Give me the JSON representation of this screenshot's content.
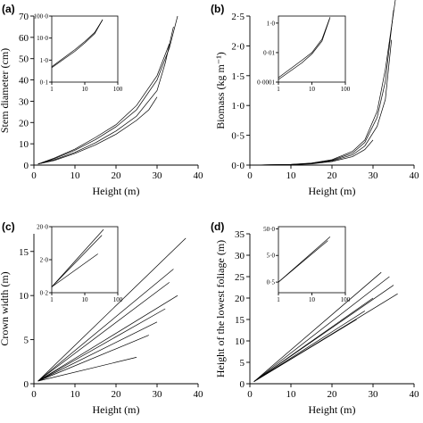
{
  "chart_data": [
    {
      "panel": "a",
      "panel_label": "(a)",
      "type": "line",
      "xlabel": "Height (m)",
      "ylabel": "Stem diameter (cm)",
      "xlim": [
        0,
        40
      ],
      "ylim": [
        0,
        70
      ],
      "xticks": [
        "0",
        "10",
        "20",
        "30",
        "40"
      ],
      "yticks": [
        "0",
        "10",
        "20",
        "30",
        "40",
        "50",
        "60",
        "70"
      ],
      "series": [
        {
          "x": [
            1,
            5,
            10,
            15,
            20,
            25,
            30,
            33,
            35
          ],
          "y": [
            0.5,
            3,
            7,
            12,
            18,
            26,
            40,
            55,
            70
          ]
        },
        {
          "x": [
            1,
            5,
            10,
            15,
            20,
            25,
            30,
            32,
            34
          ],
          "y": [
            0.5,
            2.5,
            6,
            10.5,
            16,
            23,
            35,
            48,
            65
          ]
        },
        {
          "x": [
            1,
            5,
            10,
            15,
            20,
            25,
            28,
            30
          ],
          "y": [
            0.5,
            2.2,
            5.5,
            9.5,
            14.5,
            21,
            26,
            32
          ]
        },
        {
          "x": [
            1,
            5,
            10,
            15,
            20,
            25,
            30,
            33
          ],
          "y": [
            0.5,
            3.3,
            7.5,
            13,
            19,
            28,
            42,
            57
          ]
        }
      ],
      "inset": {
        "scale": "log",
        "xticks": [
          "1",
          "10",
          "100"
        ],
        "yticks": [
          "0·1",
          "1·0",
          "10·0",
          "100·0"
        ],
        "xlim": [
          1,
          100
        ],
        "ylim": [
          0.1,
          100
        ],
        "series": [
          {
            "x": [
              1,
              5,
              10,
              20,
              35
            ],
            "y": [
              0.5,
              3,
              7,
              18,
              70
            ]
          },
          {
            "x": [
              1,
              5,
              10,
              20,
              34
            ],
            "y": [
              0.45,
              2.5,
              6,
              16,
              65
            ]
          }
        ]
      }
    },
    {
      "panel": "b",
      "panel_label": "(b)",
      "type": "line",
      "xlabel": "Height (m)",
      "ylabel": "Biomass (kg m⁻¹)",
      "xlim": [
        0,
        40
      ],
      "ylim": [
        0,
        2.5
      ],
      "xticks": [
        "0",
        "10",
        "20",
        "30",
        "40"
      ],
      "yticks": [
        "0·0",
        "0·5",
        "1·0",
        "1·5",
        "2·0",
        "2·5"
      ],
      "series": [
        {
          "x": [
            1,
            10,
            15,
            20,
            25,
            28,
            31,
            33,
            35
          ],
          "y": [
            0,
            0.01,
            0.03,
            0.08,
            0.2,
            0.38,
            0.8,
            1.4,
            2.6
          ]
        },
        {
          "x": [
            1,
            10,
            15,
            20,
            25,
            28,
            31,
            33,
            34.5
          ],
          "y": [
            0,
            0.01,
            0.025,
            0.07,
            0.17,
            0.32,
            0.65,
            1.1,
            2.1
          ]
        },
        {
          "x": [
            1,
            10,
            15,
            20,
            25,
            28,
            30
          ],
          "y": [
            0,
            0.008,
            0.02,
            0.06,
            0.14,
            0.26,
            0.42
          ]
        },
        {
          "x": [
            1,
            10,
            15,
            20,
            25,
            28,
            31,
            33,
            35.5
          ],
          "y": [
            0,
            0.012,
            0.035,
            0.09,
            0.23,
            0.42,
            0.9,
            1.6,
            2.8
          ]
        }
      ],
      "inset": {
        "scale": "log",
        "xticks": [
          "1",
          "10",
          "100"
        ],
        "yticks": [
          "0·0001",
          "0·01",
          "1·0"
        ],
        "xlim": [
          1,
          100
        ],
        "ylim": [
          0.0001,
          3
        ],
        "series": [
          {
            "x": [
              1,
              5,
              10,
              20,
              35
            ],
            "y": [
              0.0002,
              0.003,
              0.01,
              0.08,
              2.5
            ]
          },
          {
            "x": [
              1,
              5,
              10,
              20,
              34
            ],
            "y": [
              0.00015,
              0.002,
              0.008,
              0.06,
              2.0
            ]
          }
        ]
      }
    },
    {
      "panel": "c",
      "panel_label": "(c)",
      "type": "line",
      "xlabel": "Height (m)",
      "ylabel": "Crown width (m)",
      "xlim": [
        0,
        40
      ],
      "ylim": [
        0,
        17
      ],
      "xticks": [
        "0",
        "10",
        "20",
        "30",
        "40"
      ],
      "yticks": [
        "0",
        "5",
        "10",
        "15"
      ],
      "series": [
        {
          "x": [
            1,
            37
          ],
          "y": [
            0.3,
            16.5
          ]
        },
        {
          "x": [
            1,
            34
          ],
          "y": [
            0.3,
            13
          ]
        },
        {
          "x": [
            1,
            33
          ],
          "y": [
            0.3,
            11.5
          ]
        },
        {
          "x": [
            1,
            35
          ],
          "y": [
            0.3,
            10
          ]
        },
        {
          "x": [
            1,
            32
          ],
          "y": [
            0.3,
            8.5
          ]
        },
        {
          "x": [
            1,
            30
          ],
          "y": [
            0.3,
            7
          ]
        },
        {
          "x": [
            1,
            28
          ],
          "y": [
            0.3,
            5.5
          ]
        },
        {
          "x": [
            1,
            25
          ],
          "y": [
            0.3,
            3
          ]
        }
      ],
      "inset": {
        "scale": "log",
        "xticks": [
          "1",
          "10",
          "100"
        ],
        "yticks": [
          "0·2",
          "2·0",
          "20·0"
        ],
        "xlim": [
          1,
          100
        ],
        "ylim": [
          0.2,
          20
        ],
        "series": [
          {
            "x": [
              1,
              37
            ],
            "y": [
              0.3,
              16.5
            ]
          },
          {
            "x": [
              1,
              33
            ],
            "y": [
              0.3,
              11
            ]
          },
          {
            "x": [
              1,
              25
            ],
            "y": [
              0.3,
              3
            ]
          }
        ]
      }
    },
    {
      "panel": "d",
      "panel_label": "(d)",
      "type": "line",
      "xlabel": "Height (m)",
      "ylabel": "Height of the lowest foliage (m)",
      "xlim": [
        0,
        40
      ],
      "ylim": [
        0,
        35
      ],
      "xticks": [
        "0",
        "10",
        "20",
        "30",
        "40"
      ],
      "yticks": [
        "0",
        "5",
        "10",
        "15",
        "20",
        "25",
        "30",
        "35"
      ],
      "series": [
        {
          "x": [
            1,
            32
          ],
          "y": [
            0.5,
            26
          ]
        },
        {
          "x": [
            1,
            34
          ],
          "y": [
            0.5,
            25
          ]
        },
        {
          "x": [
            1,
            35
          ],
          "y": [
            0.5,
            23
          ]
        },
        {
          "x": [
            1,
            36
          ],
          "y": [
            0.5,
            21
          ]
        },
        {
          "x": [
            1,
            30
          ],
          "y": [
            0.5,
            20
          ]
        },
        {
          "x": [
            1,
            28
          ],
          "y": [
            0.5,
            17
          ]
        },
        {
          "x": [
            1,
            26
          ],
          "y": [
            0.5,
            15
          ]
        }
      ],
      "inset": {
        "scale": "log",
        "xticks": [
          "1",
          "10",
          "100"
        ],
        "yticks": [
          "0·5",
          "5·0",
          "50·0"
        ],
        "xlim": [
          1,
          100
        ],
        "ylim": [
          0.2,
          60
        ],
        "series": [
          {
            "x": [
              1,
              35
            ],
            "y": [
              0.5,
              25
            ]
          },
          {
            "x": [
              1,
              30
            ],
            "y": [
              0.5,
              18
            ]
          }
        ]
      }
    }
  ]
}
